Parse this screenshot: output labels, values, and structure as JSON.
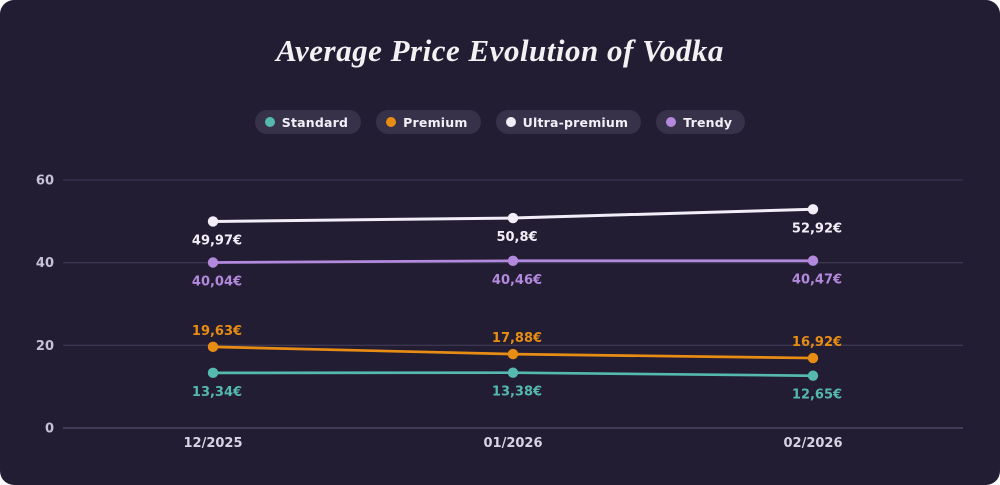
{
  "header": {
    "title": "Average Price Evolution of Vodka"
  },
  "colors": {
    "card_background": "#221d33",
    "grid_line": "#3b3550",
    "zero_line": "#575170",
    "y_tick_label": "#c7c2d4",
    "x_tick_label": "#d8d4e3",
    "legend_pill_background": "#37324a",
    "legend_label": "#f2eff7",
    "title": "#f4f1f3"
  },
  "chart_data": {
    "type": "line",
    "title": "Average Price Evolution of Vodka",
    "categories": [
      "12/2025",
      "01/2026",
      "02/2026"
    ],
    "series": [
      {
        "name": "Standard",
        "color": "#55b9b0",
        "values": [
          13.34,
          13.38,
          12.65
        ],
        "labels": [
          "13,34€",
          "13,38€",
          "12,65€"
        ],
        "label_position": "below"
      },
      {
        "name": "Premium",
        "color": "#e88d14",
        "values": [
          19.63,
          17.88,
          16.92
        ],
        "labels": [
          "19,63€",
          "17,88€",
          "16,92€"
        ],
        "label_position": "above"
      },
      {
        "name": "Ultra-premium",
        "color": "#f2edf6",
        "values": [
          49.97,
          50.8,
          52.92
        ],
        "labels": [
          "49,97€",
          "50,8€",
          "52,92€"
        ],
        "label_position": "below"
      },
      {
        "name": "Trendy",
        "color": "#b289dc",
        "values": [
          40.04,
          40.46,
          40.47
        ],
        "labels": [
          "40,04€",
          "40,46€",
          "40,47€"
        ],
        "label_position": "below"
      }
    ],
    "y_ticks": [
      0,
      20,
      40,
      60
    ],
    "ylim": [
      0,
      60
    ],
    "xlabel": "",
    "ylabel": "",
    "grid": true,
    "legend_position": "top",
    "currency": "€"
  }
}
